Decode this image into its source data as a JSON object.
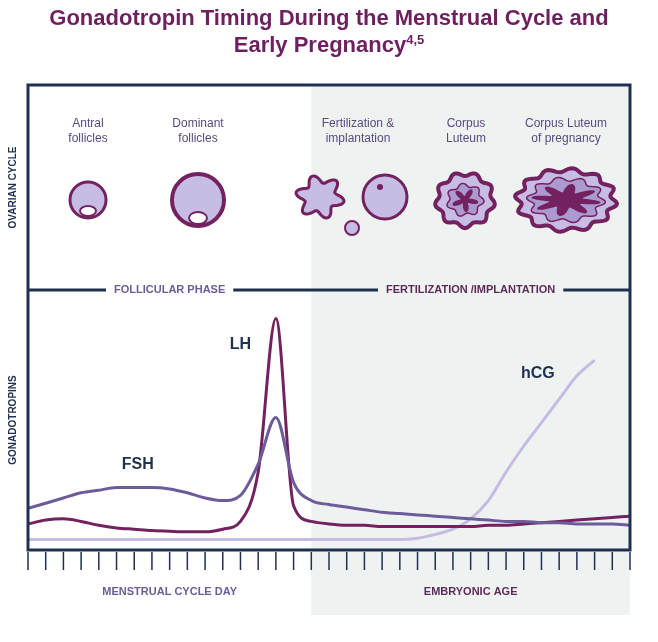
{
  "chart_data": {
    "type": "line",
    "title": "Gonadotropin Timing During the Menstrual Cycle and Early Pregnancy",
    "title_superscript": "4,5",
    "panel_labels": [
      "OVARIAN CYCLE",
      "GONADOTROPINS"
    ],
    "stages": [
      "Antral follicles",
      "Dominant follicles",
      "Fertilization & implantation",
      "Corpus Luteum",
      "Corpus Luteum of pregnancy"
    ],
    "phases": [
      {
        "label": "FOLLICULAR PHASE",
        "axis_label": "MENSTRUAL CYCLE DAY",
        "from": 0,
        "to": 16
      },
      {
        "label": "FERTILIZATION /IMPLANTATION",
        "axis_label": "EMBRYONIC AGE",
        "from": 16,
        "to": 34
      }
    ],
    "x": [
      0,
      1,
      2,
      3,
      4,
      5,
      6,
      7,
      8,
      9,
      10,
      11,
      12,
      13,
      14,
      15,
      16,
      17,
      18,
      19,
      20,
      21,
      22,
      23,
      24,
      25,
      26,
      27,
      28,
      29,
      30,
      31,
      32,
      33,
      34
    ],
    "series": [
      {
        "name": "FSH",
        "color": "#6c5c9a",
        "values": [
          16,
          18,
          20,
          22,
          23,
          24,
          24,
          24,
          23.5,
          22,
          20,
          19,
          21,
          33,
          51,
          26,
          19,
          17.5,
          16.5,
          15.5,
          14.5,
          14,
          13.5,
          13,
          12.5,
          12,
          11.5,
          11,
          11,
          10.5,
          10.5,
          10,
          10,
          10,
          9.5
        ]
      },
      {
        "name": "LH",
        "color": "#74215f",
        "values": [
          10,
          11.5,
          12,
          11,
          9.5,
          8.5,
          8,
          7.5,
          7.2,
          7,
          7,
          8,
          11,
          30,
          89,
          17,
          11,
          10,
          9.5,
          9.5,
          9,
          9,
          9,
          9,
          9,
          9,
          9.5,
          9.5,
          10,
          10.5,
          11,
          11.5,
          12,
          12.5,
          13
        ]
      },
      {
        "name": "hCG",
        "color": "#c5bbe3",
        "values": [
          4,
          4,
          4,
          4,
          4,
          4,
          4,
          4,
          4,
          4,
          4,
          4,
          4,
          4,
          4,
          4,
          4,
          4,
          4,
          4,
          4,
          4,
          4.5,
          6,
          8,
          12,
          19,
          30,
          40,
          49,
          58,
          67,
          73,
          null,
          null
        ]
      }
    ],
    "xlim": [
      0,
      34
    ],
    "xticks": [
      0,
      1,
      2,
      3,
      4,
      5,
      6,
      7,
      8,
      9,
      10,
      11,
      12,
      13,
      14,
      15,
      16,
      17,
      18,
      19,
      20,
      21,
      22,
      23,
      24,
      25,
      26,
      27,
      28,
      29,
      30,
      31,
      32,
      33,
      34
    ],
    "ylim": [
      0,
      100
    ],
    "grid": false,
    "tick_labels": false
  }
}
